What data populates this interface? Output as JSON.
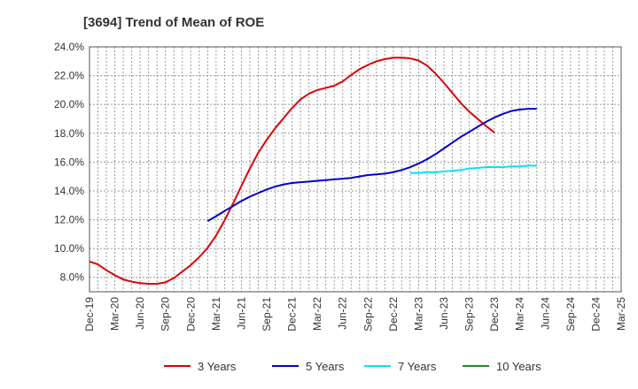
{
  "chart_data": {
    "type": "line",
    "title": "[3694]  Trend of Mean of ROE",
    "xlabel": "",
    "ylabel": "",
    "ylim": [
      7.0,
      24.0
    ],
    "y_ticks": [
      "8.0%",
      "10.0%",
      "12.0%",
      "14.0%",
      "16.0%",
      "18.0%",
      "20.0%",
      "22.0%",
      "24.0%"
    ],
    "y_tick_values": [
      8,
      10,
      12,
      14,
      16,
      18,
      20,
      22,
      24
    ],
    "x_ticks": [
      "Dec-19",
      "Mar-20",
      "Jun-20",
      "Sep-20",
      "Dec-20",
      "Mar-21",
      "Jun-21",
      "Sep-21",
      "Dec-21",
      "Mar-22",
      "Jun-22",
      "Sep-22",
      "Dec-22",
      "Mar-23",
      "Jun-23",
      "Sep-23",
      "Dec-23",
      "Mar-24",
      "Jun-24",
      "Sep-24",
      "Dec-24",
      "Mar-25"
    ],
    "grid": true,
    "legend_position": "bottom",
    "series": [
      {
        "name": "3 Years",
        "color": "#dd0000",
        "start_index": 0,
        "values": [
          9.1,
          8.9,
          8.5,
          8.15,
          7.85,
          7.7,
          7.6,
          7.55,
          7.55,
          7.65,
          7.95,
          8.4,
          8.85,
          9.4,
          10.05,
          10.9,
          11.95,
          13.1,
          14.35,
          15.55,
          16.65,
          17.55,
          18.35,
          19.05,
          19.75,
          20.35,
          20.75,
          21.0,
          21.15,
          21.3,
          21.6,
          22.05,
          22.45,
          22.75,
          23.0,
          23.15,
          23.25,
          23.25,
          23.2,
          23.05,
          22.7,
          22.15,
          21.5,
          20.8,
          20.1,
          19.5,
          19.0,
          18.5,
          18.05
        ]
      },
      {
        "name": "5 Years",
        "color": "#0000cc",
        "start_index": 14,
        "values": [
          11.9,
          12.25,
          12.6,
          12.95,
          13.3,
          13.6,
          13.85,
          14.1,
          14.3,
          14.45,
          14.55,
          14.6,
          14.65,
          14.7,
          14.75,
          14.8,
          14.85,
          14.9,
          15.0,
          15.1,
          15.15,
          15.2,
          15.3,
          15.45,
          15.65,
          15.9,
          16.2,
          16.55,
          16.95,
          17.35,
          17.75,
          18.1,
          18.45,
          18.8,
          19.1,
          19.35,
          19.55,
          19.65,
          19.7,
          19.7
        ]
      },
      {
        "name": "7 Years",
        "color": "#00e5ee",
        "start_index": 38,
        "values": [
          15.25,
          15.25,
          15.3,
          15.3,
          15.35,
          15.4,
          15.45,
          15.55,
          15.6,
          15.65,
          15.65,
          15.65,
          15.7,
          15.7,
          15.75,
          15.75
        ]
      },
      {
        "name": "10 Years",
        "color": "#228b22",
        "start_index": 0,
        "values": []
      }
    ]
  }
}
